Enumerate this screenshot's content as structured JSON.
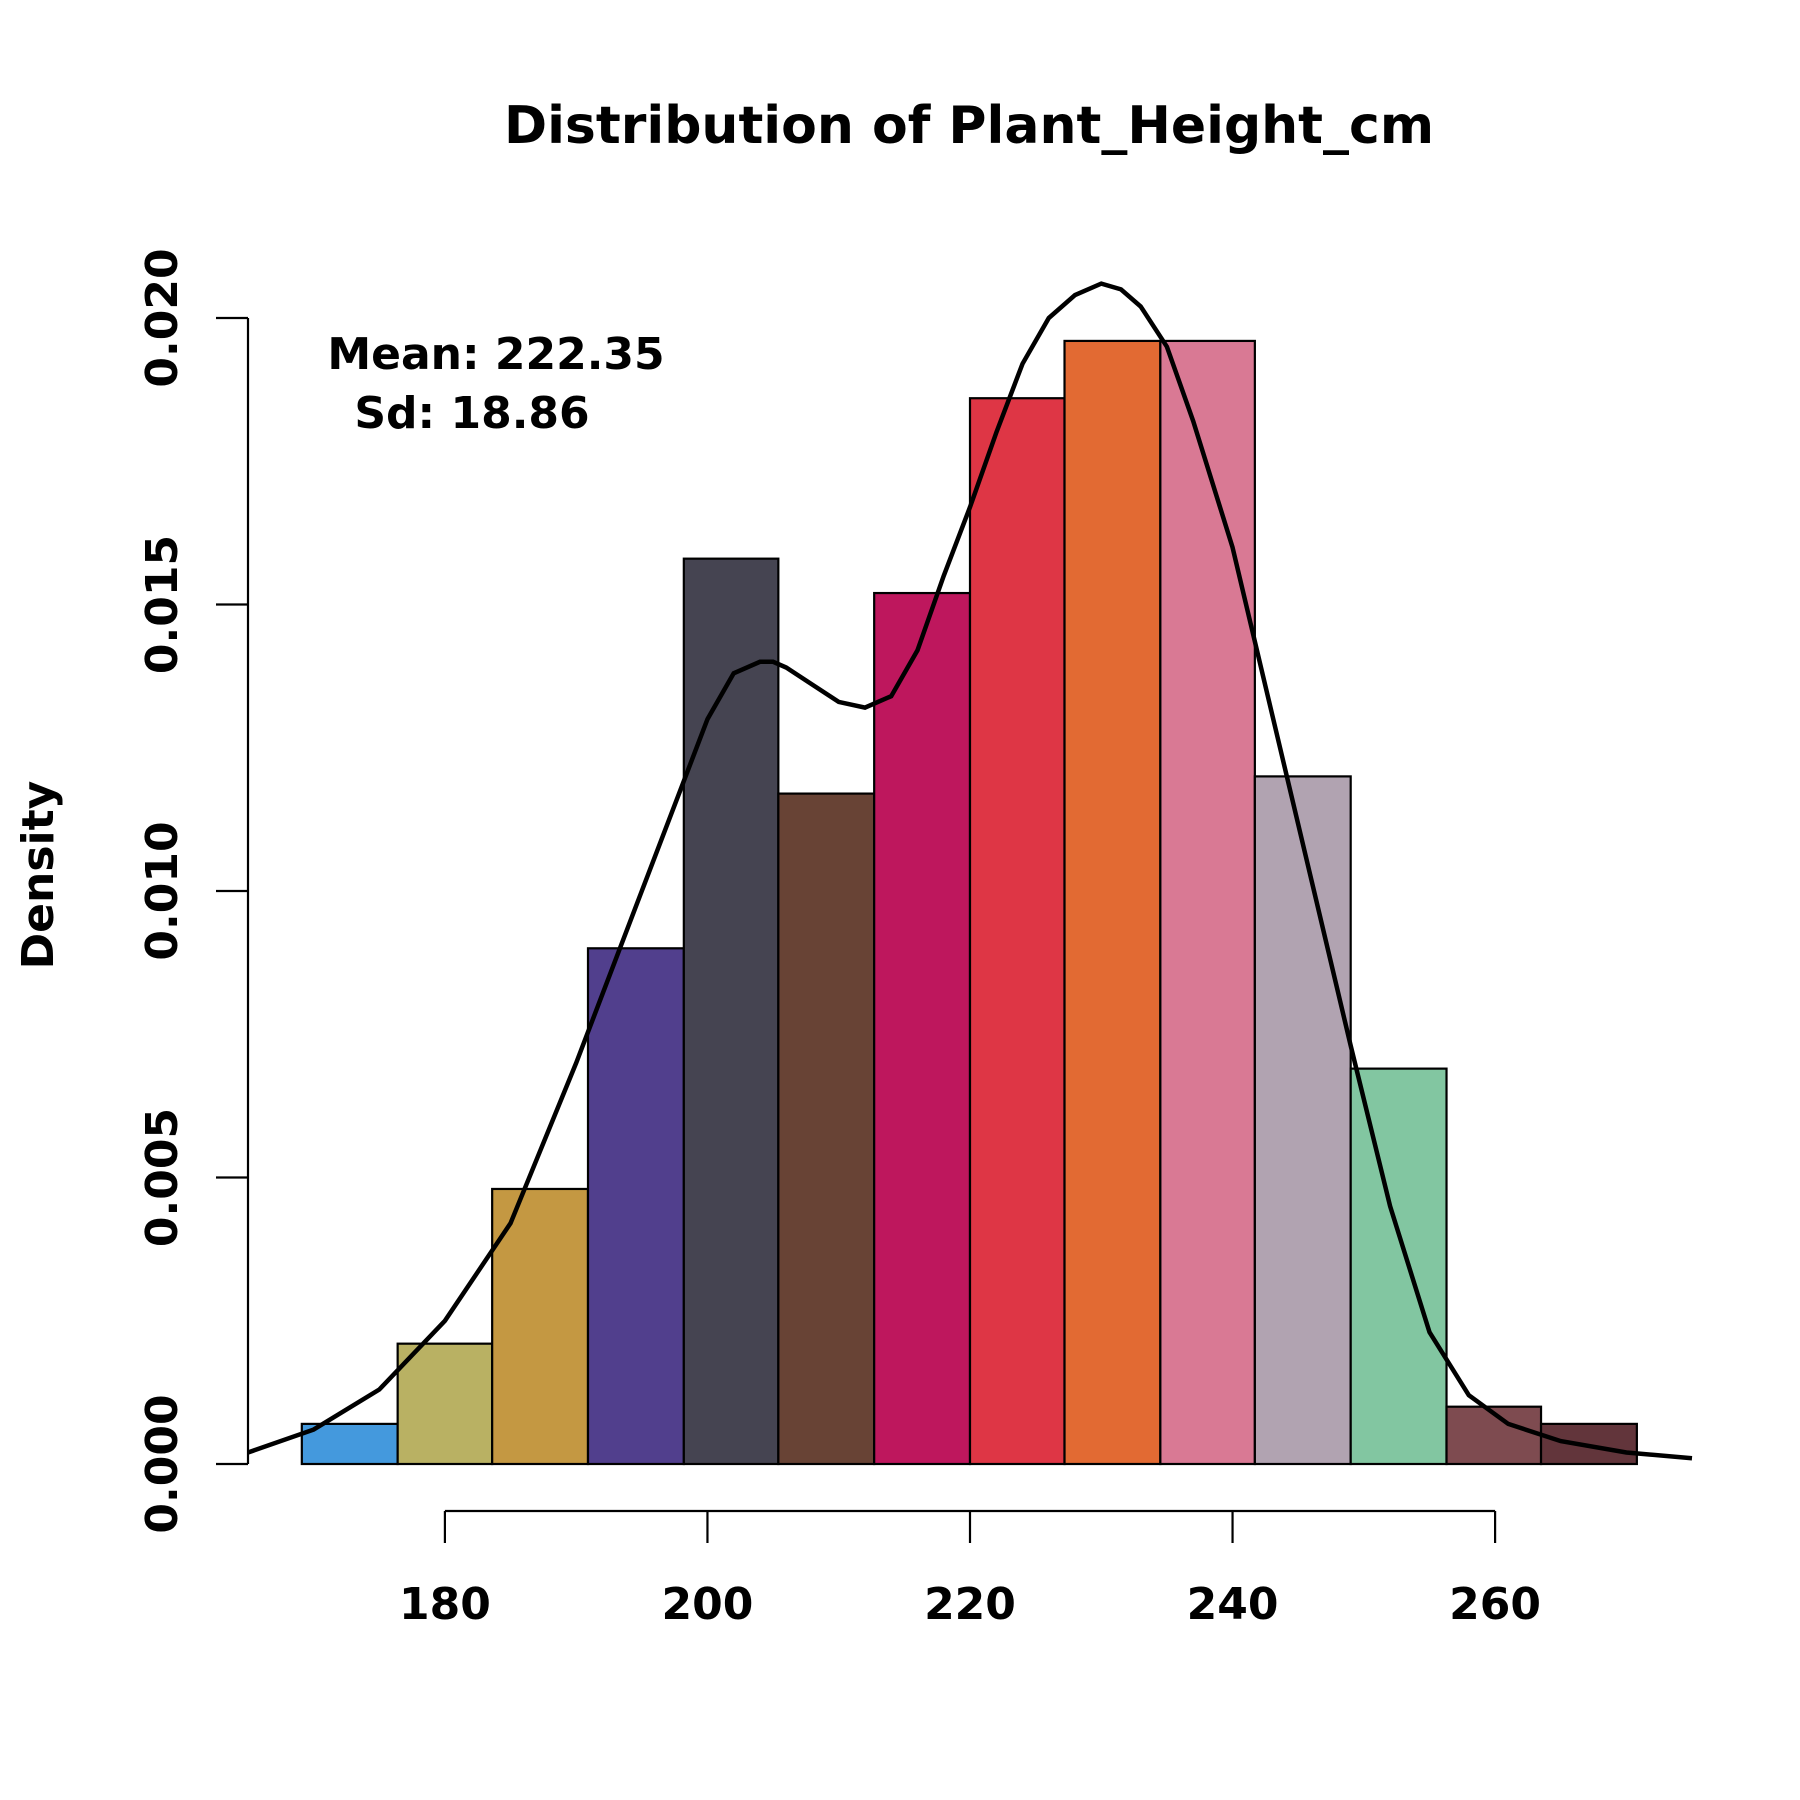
{
  "chart_data": {
    "type": "bar",
    "title": "Distribution of Plant_Height_cm",
    "xlabel": "",
    "ylabel": "Density",
    "xlim": [
      165,
      275
    ],
    "ylim": [
      0,
      0.02
    ],
    "x_ticks": [
      180,
      200,
      220,
      240,
      260
    ],
    "x_tick_labels": [
      "180",
      "200",
      "220",
      "240",
      "260"
    ],
    "y_ticks": [
      0,
      0.005,
      0.01,
      0.015,
      0.02
    ],
    "y_tick_labels": [
      "0.000",
      "0.005",
      "0.010",
      "0.015",
      "0.020"
    ],
    "bin_edges": [
      169.1,
      176.4,
      183.6,
      190.9,
      198.2,
      205.4,
      212.7,
      220.0,
      227.2,
      234.5,
      241.7,
      249.0,
      256.3,
      263.5,
      270.8
    ],
    "values": [
      0.0007,
      0.0021,
      0.0048,
      0.009,
      0.0158,
      0.0117,
      0.0152,
      0.0186,
      0.0196,
      0.0196,
      0.012,
      0.0069,
      0.001,
      0.0007
    ],
    "bar_colors": [
      "#4499dd",
      "#b9b163",
      "#c49842",
      "#513f8d",
      "#454451",
      "#684335",
      "#be175d",
      "#de3645",
      "#e26a33",
      "#d97994",
      "#b1a3b1",
      "#82c6a1",
      "#7e4b50",
      "#62353b"
    ],
    "density_curve": {
      "x": [
        165,
        170,
        175,
        180,
        185,
        190,
        195,
        198,
        200,
        202,
        204,
        205,
        206,
        208,
        210,
        212,
        214,
        216,
        218,
        220,
        222,
        224,
        226,
        228,
        230,
        231.5,
        233,
        235,
        237,
        240,
        243,
        246,
        249,
        252,
        255,
        258,
        261,
        265,
        270,
        275
      ],
      "y": [
        0.0002,
        0.0006,
        0.0013,
        0.0025,
        0.0042,
        0.007,
        0.01,
        0.0118,
        0.013,
        0.0138,
        0.014,
        0.014,
        0.0139,
        0.0136,
        0.0133,
        0.0132,
        0.0134,
        0.0142,
        0.0155,
        0.0167,
        0.018,
        0.0192,
        0.02,
        0.0204,
        0.0206,
        0.0205,
        0.0202,
        0.0195,
        0.0182,
        0.016,
        0.0131,
        0.0102,
        0.0073,
        0.0045,
        0.0023,
        0.0012,
        0.0007,
        0.0004,
        0.0002,
        0.0001
      ]
    },
    "annotations": {
      "mean": "Mean: 222.35",
      "sd": "Sd: 18.86"
    },
    "grid": false,
    "legend": "none"
  }
}
